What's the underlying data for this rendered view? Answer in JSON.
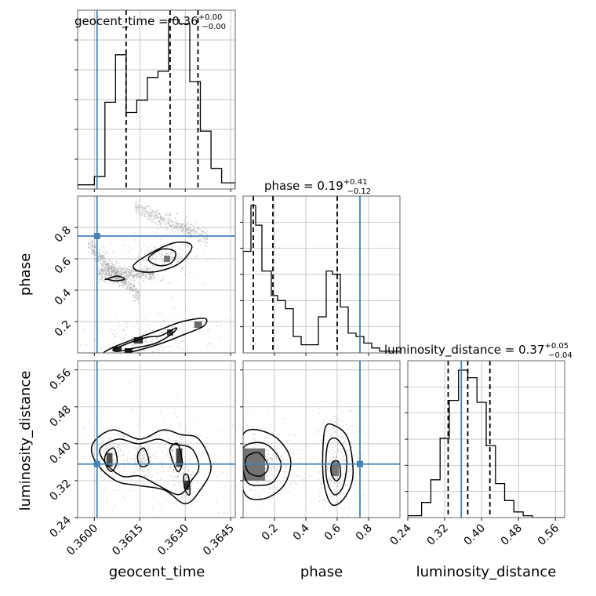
{
  "chart_data": {
    "type": "corner",
    "parameters": [
      "geocent_time",
      "phase",
      "luminosity_distance"
    ],
    "titles": {
      "geocent_time": {
        "label": "geocent_time",
        "median": "0.36",
        "plus": "+0.00",
        "minus": "−0.00"
      },
      "phase": {
        "label": "phase",
        "median": "0.19",
        "plus": "+0.41",
        "minus": "−0.12"
      },
      "luminosity_distance": {
        "label": "luminosity_distance",
        "median": "0.37",
        "plus": "+0.05",
        "minus": "−0.04"
      }
    },
    "axes": {
      "geocent_time": {
        "range": [
          0.35945,
          0.36465
        ],
        "ticks": [
          0.36,
          0.3615,
          0.363,
          0.3645
        ],
        "tick_labels": [
          "0.3600",
          "0.3615",
          "0.3630",
          "0.3645"
        ]
      },
      "phase": {
        "range": [
          0.0,
          1.0
        ],
        "ticks": [
          0.2,
          0.4,
          0.6,
          0.8
        ],
        "tick_labels": [
          "0.2",
          "0.4",
          "0.6",
          "0.8"
        ]
      },
      "luminosity_distance": {
        "range": [
          0.24,
          0.58
        ],
        "ticks": [
          0.24,
          0.32,
          0.4,
          0.48,
          0.56
        ],
        "tick_labels": [
          "0.24",
          "0.32",
          "0.40",
          "0.48",
          "0.56"
        ]
      }
    },
    "truths": {
      "geocent_time": 0.36009,
      "phase": 0.745,
      "luminosity_distance": 0.356
    },
    "quantiles": {
      "geocent_time": [
        0.36105,
        0.3625,
        0.36342
      ],
      "phase": [
        0.065,
        0.19,
        0.6
      ],
      "luminosity_distance": [
        0.3275,
        0.37,
        0.418
      ]
    },
    "histograms": {
      "geocent_time": {
        "edges": [
          0.35945,
          0.36,
          0.36035,
          0.3607,
          0.36105,
          0.3614,
          0.36175,
          0.3621,
          0.36245,
          0.3628,
          0.36315,
          0.3635,
          0.36385,
          0.3642,
          0.36465
        ],
        "counts": [
          2,
          6,
          42,
          65,
          37,
          43,
          54,
          57,
          82,
          80,
          52,
          28,
          10,
          3
        ]
      },
      "phase": {
        "edges": [
          0.0,
          0.05,
          0.08,
          0.12,
          0.18,
          0.22,
          0.27,
          0.32,
          0.37,
          0.42,
          0.48,
          0.53,
          0.57,
          0.62,
          0.67,
          0.72,
          0.77,
          0.82,
          0.87,
          1.0
        ],
        "counts": [
          62,
          90,
          78,
          50,
          35,
          32,
          27,
          10,
          5,
          5,
          22,
          50,
          48,
          28,
          12,
          10,
          6,
          3,
          1
        ]
      },
      "luminosity_distance": {
        "edges": [
          0.24,
          0.27,
          0.29,
          0.31,
          0.33,
          0.35,
          0.37,
          0.39,
          0.41,
          0.43,
          0.45,
          0.47,
          0.49,
          0.51,
          0.58
        ],
        "counts": [
          1,
          8,
          20,
          42,
          62,
          78,
          74,
          61,
          38,
          18,
          9,
          3,
          1,
          0
        ]
      }
    },
    "contours": {
      "geocent_time__phase": [
        {
          "level": 0.39,
          "x": [
            0.36185,
            0.3622,
            0.3625,
            0.36268,
            0.36262,
            0.36238,
            0.36205,
            0.3618
          ],
          "y": [
            0.62,
            0.66,
            0.66,
            0.64,
            0.59,
            0.56,
            0.56,
            0.59
          ]
        },
        {
          "level": 0.86,
          "x": [
            0.3613,
            0.3619,
            0.3626,
            0.3631,
            0.3632,
            0.3628,
            0.3621,
            0.3615
          ],
          "y": [
            0.56,
            0.64,
            0.7,
            0.7,
            0.66,
            0.57,
            0.52,
            0.52
          ]
        },
        {
          "level": 0.39,
          "x": [
            0.36065,
            0.3611,
            0.36175,
            0.3622,
            0.3627,
            0.36255,
            0.362,
            0.3613,
            0.3608
          ],
          "y": [
            0.02,
            0.06,
            0.1,
            0.11,
            0.16,
            0.12,
            0.06,
            0.03,
            0.01
          ]
        },
        {
          "level": 0.86,
          "x": [
            0.3603,
            0.3608,
            0.3615,
            0.3622,
            0.3629,
            0.36365,
            0.3636,
            0.363,
            0.3622,
            0.3613,
            0.3606
          ],
          "y": [
            0.0,
            0.05,
            0.1,
            0.15,
            0.2,
            0.22,
            0.17,
            0.12,
            0.06,
            0.01,
            -0.01
          ]
        },
        {
          "level": 0.86,
          "x": [
            0.3604,
            0.36075,
            0.361,
            0.3607,
            0.3604
          ],
          "y": [
            0.47,
            0.49,
            0.47,
            0.46,
            0.47
          ]
        }
      ],
      "geocent_time__luminosity_distance": [
        {
          "level": 0.39,
          "x": [
            0.3604,
            0.36065,
            0.36075,
            0.36055,
            0.36035
          ],
          "y": [
            0.38,
            0.39,
            0.36,
            0.34,
            0.36
          ]
        },
        {
          "level": 0.39,
          "x": [
            0.36145,
            0.36165,
            0.3618,
            0.3616,
            0.36145
          ],
          "y": [
            0.38,
            0.39,
            0.36,
            0.35,
            0.36
          ]
        },
        {
          "level": 0.39,
          "x": [
            0.3625,
            0.36275,
            0.3629,
            0.36275,
            0.36255
          ],
          "y": [
            0.39,
            0.4,
            0.36,
            0.34,
            0.37
          ]
        },
        {
          "level": 0.39,
          "x": [
            0.36295,
            0.3631,
            0.36315,
            0.363
          ],
          "y": [
            0.33,
            0.33,
            0.29,
            0.3
          ]
        },
        {
          "level": 0.86,
          "x": [
            0.3602,
            0.3608,
            0.36145,
            0.3621,
            0.36255,
            0.3632,
            0.36345,
            0.3632,
            0.3628,
            0.3621,
            0.3615,
            0.3609,
            0.36035
          ],
          "y": [
            0.39,
            0.41,
            0.4,
            0.41,
            0.4,
            0.39,
            0.35,
            0.32,
            0.29,
            0.31,
            0.33,
            0.33,
            0.36
          ]
        },
        {
          "level": 0.98,
          "x": [
            0.35995,
            0.3606,
            0.3615,
            0.36225,
            0.36285,
            0.36345,
            0.36385,
            0.3635,
            0.363,
            0.3623,
            0.3614,
            0.3607,
            0.36005
          ],
          "y": [
            0.4,
            0.43,
            0.41,
            0.43,
            0.42,
            0.41,
            0.35,
            0.3,
            0.27,
            0.3,
            0.31,
            0.32,
            0.36
          ]
        }
      ],
      "phase__luminosity_distance": [
        {
          "level": 0.39,
          "x": [
            0.02,
            0.1,
            0.16,
            0.11,
            0.03
          ],
          "y": [
            0.37,
            0.38,
            0.35,
            0.33,
            0.34
          ]
        },
        {
          "level": 0.86,
          "x": [
            0.0,
            0.14,
            0.24,
            0.2,
            0.12,
            0.02
          ],
          "y": [
            0.39,
            0.4,
            0.36,
            0.32,
            0.31,
            0.32
          ]
        },
        {
          "level": 0.98,
          "x": [
            0.0,
            0.18,
            0.3,
            0.26,
            0.12,
            0.0
          ],
          "y": [
            0.42,
            0.42,
            0.37,
            0.31,
            0.28,
            0.3
          ]
        },
        {
          "level": 0.39,
          "x": [
            0.57,
            0.61,
            0.62,
            0.59,
            0.56
          ],
          "y": [
            0.36,
            0.36,
            0.33,
            0.32,
            0.34
          ]
        },
        {
          "level": 0.86,
          "x": [
            0.54,
            0.6,
            0.66,
            0.64,
            0.58,
            0.53
          ],
          "y": [
            0.4,
            0.41,
            0.37,
            0.31,
            0.29,
            0.33
          ]
        },
        {
          "level": 0.98,
          "x": [
            0.52,
            0.58,
            0.67,
            0.7,
            0.64,
            0.56,
            0.51
          ],
          "y": [
            0.43,
            0.44,
            0.41,
            0.33,
            0.28,
            0.27,
            0.33
          ]
        }
      ]
    },
    "density_blocks": {
      "geocent_time__phase": [
        {
          "x": [
            0.3623,
            0.3625
          ],
          "y": [
            0.58,
            0.62
          ],
          "shade": 0.55
        },
        {
          "x": [
            0.3633,
            0.36355
          ],
          "y": [
            0.16,
            0.2
          ],
          "shade": 0.6
        },
        {
          "x": [
            0.3624,
            0.3626
          ],
          "y": [
            0.11,
            0.15
          ],
          "shade": 0.75
        },
        {
          "x": [
            0.3613,
            0.3616
          ],
          "y": [
            0.06,
            0.1
          ],
          "shade": 0.8
        },
        {
          "x": [
            0.3606,
            0.3609
          ],
          "y": [
            0.01,
            0.04
          ],
          "shade": 0.85
        },
        {
          "x": [
            0.361,
            0.36125
          ],
          "y": [
            0.0,
            0.03
          ],
          "shade": 0.9
        }
      ],
      "geocent_time__luminosity_distance": [
        {
          "x": [
            0.3604,
            0.3606
          ],
          "y": [
            0.35,
            0.38
          ],
          "shade": 0.7
        },
        {
          "x": [
            0.3627,
            0.3629
          ],
          "y": [
            0.35,
            0.39
          ],
          "shade": 0.75
        },
        {
          "x": [
            0.36298,
            0.36312
          ],
          "y": [
            0.3,
            0.32
          ],
          "shade": 0.8
        }
      ],
      "phase__luminosity_distance": [
        {
          "x": [
            0.02,
            0.1
          ],
          "y": [
            0.34,
            0.37
          ],
          "shade": 0.9
        },
        {
          "x": [
            0.0,
            0.14
          ],
          "y": [
            0.32,
            0.39
          ],
          "shade": 0.55
        },
        {
          "x": [
            0.56,
            0.61
          ],
          "y": [
            0.33,
            0.36
          ],
          "shade": 0.55
        }
      ]
    },
    "scatter_bands": {
      "geocent_time__phase": [
        {
          "x": [
            0.36135,
            0.36375
          ],
          "y": [
            0.93,
            0.73
          ],
          "spread": 0.025
        },
        {
          "x": [
            0.3598,
            0.3615
          ],
          "y": [
            0.69,
            0.36
          ],
          "spread": 0.025
        },
        {
          "x": [
            0.3601,
            0.362
          ],
          "y": [
            0.52,
            0.5
          ],
          "spread": 0.02
        }
      ]
    },
    "colors": {
      "truth": "#4682b4",
      "contour": "#000000",
      "hist": "#000000",
      "grid": "#b0b0b0",
      "points": "#9a9a9a"
    }
  }
}
